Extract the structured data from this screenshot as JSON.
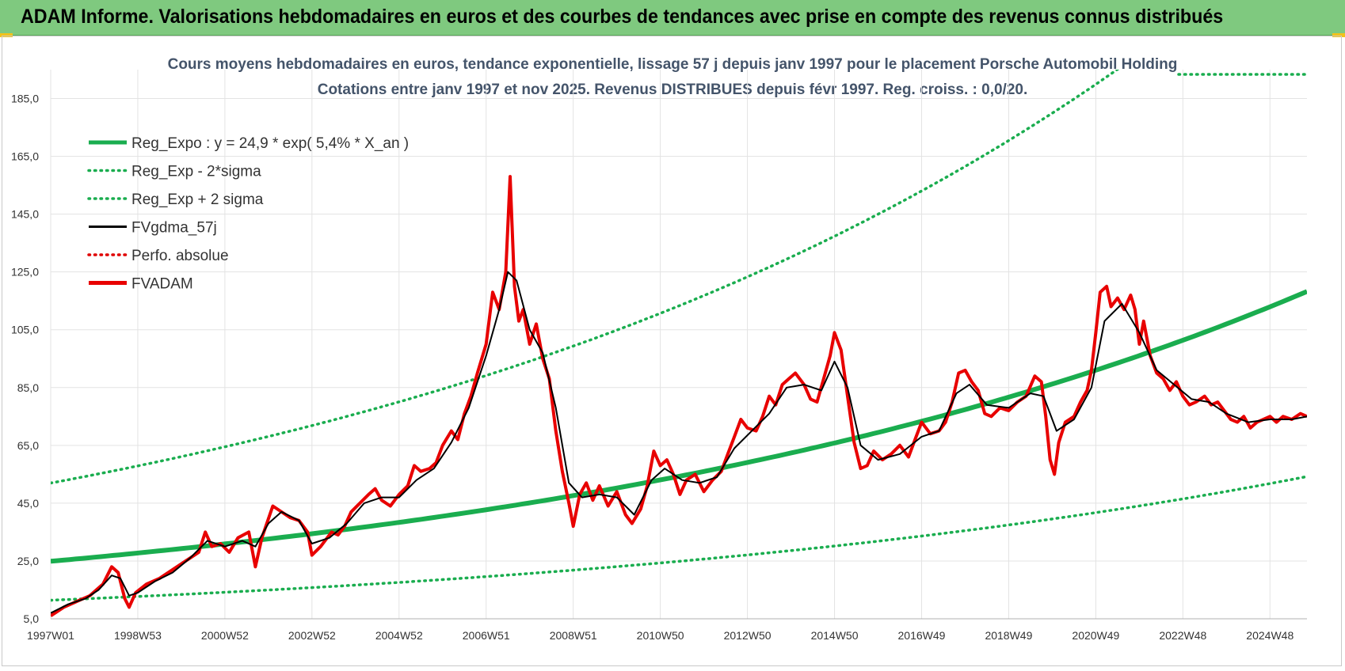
{
  "banner": {
    "title": "ADAM Informe. Valorisations hebdomadaires en euros et des courbes de tendances avec prise en compte des revenus connus distribués"
  },
  "colors": {
    "banner_bg": "#7fc97f",
    "reg_expo": "#1aad4f",
    "sigma": "#1aad4f",
    "fvgdma": "#000000",
    "perfo": "#e00000",
    "fvadam": "#e80000",
    "title": "#44546a"
  },
  "chart_data": {
    "type": "line",
    "title_line1": "Cours moyens hebdomadaires en euros, tendance exponentielle, lissage 57 j depuis janv 1997  pour le placement Porsche Automobil Holding",
    "title_line2": "Cotations entre janv 1997 et nov 2025. Revenus DISTRIBUES depuis févr 1997. Reg. croiss. : 0,0/20.",
    "xlabel": "",
    "ylabel": "",
    "xlim": [
      1997.0,
      2025.85
    ],
    "ylim": [
      5,
      195
    ],
    "y_ticks": [
      5,
      25,
      45,
      65,
      85,
      105,
      125,
      145,
      165,
      185
    ],
    "y_tick_labels": [
      "5,0",
      "25,0",
      "45,0",
      "65,0",
      "85,0",
      "105,0",
      "125,0",
      "145,0",
      "165,0",
      "185,0"
    ],
    "x_ticks": [
      1997.0,
      1999.0,
      2001.0,
      2003.0,
      2005.0,
      2007.0,
      2009.0,
      2011.0,
      2013.0,
      2015.0,
      2017.0,
      2019.0,
      2021.0,
      2023.0,
      2025.0
    ],
    "x_tick_labels": [
      "1997W01",
      "1998W53",
      "2000W52",
      "2002W52",
      "2004W52",
      "2006W51",
      "2008W51",
      "2010W50",
      "2012W50",
      "2014W50",
      "2016W49",
      "2018W49",
      "2020W49",
      "2022W48",
      "2024W48"
    ],
    "legend": [
      {
        "label": "Reg_Expo : y = 24,9 * exp( 5,4% *  X_an )",
        "style": "solid-thick",
        "color": "#1aad4f"
      },
      {
        "label": "Reg_Exp - 2*sigma",
        "style": "dotted",
        "color": "#1aad4f"
      },
      {
        "label": "Reg_Exp + 2 sigma",
        "style": "dotted",
        "color": "#1aad4f"
      },
      {
        "label": "FVgdma_57j",
        "style": "solid",
        "color": "#000000"
      },
      {
        "label": "Perfo. absolue",
        "style": "dotted",
        "color": "#e00000"
      },
      {
        "label": "FVADAM",
        "style": "solid-thick",
        "color": "#e80000"
      }
    ],
    "regression": {
      "a": 24.9,
      "b": 0.054,
      "lower_factor": 0.4585,
      "upper_factor": 2.087
    },
    "series": [
      {
        "name": "FVADAM",
        "points": [
          [
            1997.0,
            6
          ],
          [
            1997.3,
            9
          ],
          [
            1997.6,
            11
          ],
          [
            1997.9,
            13
          ],
          [
            1998.2,
            17
          ],
          [
            1998.4,
            23
          ],
          [
            1998.55,
            21
          ],
          [
            1998.7,
            12
          ],
          [
            1998.8,
            9
          ],
          [
            1998.95,
            14
          ],
          [
            1999.2,
            17
          ],
          [
            1999.5,
            19
          ],
          [
            1999.8,
            22
          ],
          [
            2000.1,
            25
          ],
          [
            2000.4,
            28
          ],
          [
            2000.55,
            35
          ],
          [
            2000.7,
            30
          ],
          [
            2000.9,
            31
          ],
          [
            2001.1,
            28
          ],
          [
            2001.3,
            33
          ],
          [
            2001.55,
            35
          ],
          [
            2001.7,
            23
          ],
          [
            2001.85,
            33
          ],
          [
            2002.1,
            44
          ],
          [
            2002.3,
            42
          ],
          [
            2002.5,
            40
          ],
          [
            2002.7,
            39
          ],
          [
            2002.9,
            35
          ],
          [
            2003.0,
            27
          ],
          [
            2003.2,
            30
          ],
          [
            2003.45,
            35
          ],
          [
            2003.6,
            34
          ],
          [
            2003.75,
            37
          ],
          [
            2003.9,
            42
          ],
          [
            2004.1,
            45
          ],
          [
            2004.3,
            48
          ],
          [
            2004.45,
            50
          ],
          [
            2004.6,
            46
          ],
          [
            2004.8,
            44
          ],
          [
            2005.0,
            48
          ],
          [
            2005.2,
            51
          ],
          [
            2005.35,
            58
          ],
          [
            2005.5,
            56
          ],
          [
            2005.7,
            57
          ],
          [
            2005.85,
            59
          ],
          [
            2006.0,
            65
          ],
          [
            2006.2,
            70
          ],
          [
            2006.35,
            67
          ],
          [
            2006.5,
            76
          ],
          [
            2006.65,
            82
          ],
          [
            2006.8,
            90
          ],
          [
            2007.0,
            100
          ],
          [
            2007.15,
            118
          ],
          [
            2007.3,
            112
          ],
          [
            2007.45,
            125
          ],
          [
            2007.55,
            158
          ],
          [
            2007.65,
            120
          ],
          [
            2007.75,
            108
          ],
          [
            2007.85,
            112
          ],
          [
            2008.0,
            100
          ],
          [
            2008.15,
            107
          ],
          [
            2008.3,
            95
          ],
          [
            2008.45,
            88
          ],
          [
            2008.6,
            70
          ],
          [
            2008.75,
            56
          ],
          [
            2008.9,
            45
          ],
          [
            2009.0,
            37
          ],
          [
            2009.15,
            48
          ],
          [
            2009.3,
            52
          ],
          [
            2009.45,
            46
          ],
          [
            2009.6,
            51
          ],
          [
            2009.8,
            44
          ],
          [
            2010.0,
            49
          ],
          [
            2010.2,
            41
          ],
          [
            2010.35,
            38
          ],
          [
            2010.55,
            43
          ],
          [
            2010.7,
            51
          ],
          [
            2010.85,
            63
          ],
          [
            2011.0,
            58
          ],
          [
            2011.15,
            60
          ],
          [
            2011.3,
            55
          ],
          [
            2011.45,
            48
          ],
          [
            2011.6,
            53
          ],
          [
            2011.8,
            55
          ],
          [
            2012.0,
            49
          ],
          [
            2012.2,
            53
          ],
          [
            2012.4,
            56
          ],
          [
            2012.55,
            62
          ],
          [
            2012.7,
            68
          ],
          [
            2012.85,
            74
          ],
          [
            2013.0,
            71
          ],
          [
            2013.2,
            70
          ],
          [
            2013.35,
            75
          ],
          [
            2013.5,
            82
          ],
          [
            2013.65,
            79
          ],
          [
            2013.8,
            86
          ],
          [
            2013.95,
            88
          ],
          [
            2014.1,
            90
          ],
          [
            2014.3,
            86
          ],
          [
            2014.45,
            81
          ],
          [
            2014.6,
            80
          ],
          [
            2014.75,
            88
          ],
          [
            2014.9,
            96
          ],
          [
            2015.0,
            104
          ],
          [
            2015.15,
            98
          ],
          [
            2015.3,
            82
          ],
          [
            2015.45,
            66
          ],
          [
            2015.6,
            57
          ],
          [
            2015.75,
            58
          ],
          [
            2015.9,
            63
          ],
          [
            2016.1,
            60
          ],
          [
            2016.3,
            62
          ],
          [
            2016.5,
            65
          ],
          [
            2016.7,
            61
          ],
          [
            2016.85,
            67
          ],
          [
            2017.0,
            73
          ],
          [
            2017.2,
            69
          ],
          [
            2017.4,
            70
          ],
          [
            2017.55,
            73
          ],
          [
            2017.7,
            80
          ],
          [
            2017.85,
            90
          ],
          [
            2018.0,
            91
          ],
          [
            2018.15,
            87
          ],
          [
            2018.3,
            84
          ],
          [
            2018.45,
            76
          ],
          [
            2018.6,
            75
          ],
          [
            2018.8,
            78
          ],
          [
            2019.0,
            77
          ],
          [
            2019.2,
            80
          ],
          [
            2019.4,
            82
          ],
          [
            2019.6,
            89
          ],
          [
            2019.75,
            87
          ],
          [
            2019.85,
            75
          ],
          [
            2019.95,
            60
          ],
          [
            2020.05,
            55
          ],
          [
            2020.15,
            66
          ],
          [
            2020.3,
            73
          ],
          [
            2020.5,
            75
          ],
          [
            2020.65,
            80
          ],
          [
            2020.8,
            84
          ],
          [
            2020.9,
            91
          ],
          [
            2021.0,
            104
          ],
          [
            2021.1,
            118
          ],
          [
            2021.25,
            120
          ],
          [
            2021.35,
            113
          ],
          [
            2021.5,
            116
          ],
          [
            2021.65,
            112
          ],
          [
            2021.8,
            117
          ],
          [
            2021.9,
            112
          ],
          [
            2022.0,
            100
          ],
          [
            2022.1,
            108
          ],
          [
            2022.25,
            96
          ],
          [
            2022.4,
            90
          ],
          [
            2022.55,
            88
          ],
          [
            2022.7,
            84
          ],
          [
            2022.85,
            87
          ],
          [
            2023.0,
            82
          ],
          [
            2023.15,
            79
          ],
          [
            2023.3,
            80
          ],
          [
            2023.5,
            82
          ],
          [
            2023.65,
            79
          ],
          [
            2023.8,
            80
          ],
          [
            2023.95,
            77
          ],
          [
            2024.1,
            74
          ],
          [
            2024.25,
            73
          ],
          [
            2024.4,
            75
          ],
          [
            2024.55,
            71
          ],
          [
            2024.7,
            73
          ],
          [
            2024.85,
            74
          ],
          [
            2025.0,
            75
          ],
          [
            2025.15,
            73
          ],
          [
            2025.3,
            75
          ],
          [
            2025.5,
            74
          ],
          [
            2025.7,
            76
          ],
          [
            2025.85,
            75
          ]
        ]
      },
      {
        "name": "FVgdma_57j",
        "points": [
          [
            1997.0,
            7
          ],
          [
            1997.4,
            10
          ],
          [
            1997.8,
            12
          ],
          [
            1998.1,
            15
          ],
          [
            1998.4,
            20
          ],
          [
            1998.6,
            19
          ],
          [
            1998.8,
            13
          ],
          [
            1999.0,
            14
          ],
          [
            1999.4,
            18
          ],
          [
            1999.8,
            21
          ],
          [
            2000.2,
            26
          ],
          [
            2000.6,
            32
          ],
          [
            2001.0,
            30
          ],
          [
            2001.4,
            32
          ],
          [
            2001.7,
            30
          ],
          [
            2002.0,
            38
          ],
          [
            2002.3,
            42
          ],
          [
            2002.7,
            39
          ],
          [
            2003.0,
            31
          ],
          [
            2003.4,
            33
          ],
          [
            2003.8,
            38
          ],
          [
            2004.2,
            45
          ],
          [
            2004.6,
            47
          ],
          [
            2005.0,
            47
          ],
          [
            2005.4,
            53
          ],
          [
            2005.8,
            57
          ],
          [
            2006.2,
            66
          ],
          [
            2006.6,
            78
          ],
          [
            2007.0,
            96
          ],
          [
            2007.3,
            112
          ],
          [
            2007.5,
            125
          ],
          [
            2007.7,
            122
          ],
          [
            2008.0,
            105
          ],
          [
            2008.3,
            97
          ],
          [
            2008.6,
            78
          ],
          [
            2008.9,
            52
          ],
          [
            2009.2,
            47
          ],
          [
            2009.6,
            48
          ],
          [
            2010.0,
            47
          ],
          [
            2010.4,
            41
          ],
          [
            2010.8,
            53
          ],
          [
            2011.1,
            57
          ],
          [
            2011.5,
            53
          ],
          [
            2011.9,
            52
          ],
          [
            2012.3,
            54
          ],
          [
            2012.7,
            64
          ],
          [
            2013.1,
            70
          ],
          [
            2013.5,
            76
          ],
          [
            2013.9,
            85
          ],
          [
            2014.3,
            86
          ],
          [
            2014.7,
            84
          ],
          [
            2015.0,
            94
          ],
          [
            2015.3,
            85
          ],
          [
            2015.6,
            65
          ],
          [
            2016.0,
            60
          ],
          [
            2016.5,
            62
          ],
          [
            2017.0,
            68
          ],
          [
            2017.4,
            70
          ],
          [
            2017.8,
            83
          ],
          [
            2018.1,
            86
          ],
          [
            2018.5,
            79
          ],
          [
            2019.0,
            78
          ],
          [
            2019.5,
            83
          ],
          [
            2019.8,
            82
          ],
          [
            2020.1,
            70
          ],
          [
            2020.5,
            74
          ],
          [
            2020.9,
            85
          ],
          [
            2021.2,
            108
          ],
          [
            2021.6,
            114
          ],
          [
            2022.0,
            104
          ],
          [
            2022.4,
            91
          ],
          [
            2022.8,
            86
          ],
          [
            2023.2,
            81
          ],
          [
            2023.6,
            80
          ],
          [
            2024.0,
            76
          ],
          [
            2024.5,
            73
          ],
          [
            2025.0,
            74
          ],
          [
            2025.5,
            74
          ],
          [
            2025.85,
            75
          ]
        ]
      }
    ]
  }
}
